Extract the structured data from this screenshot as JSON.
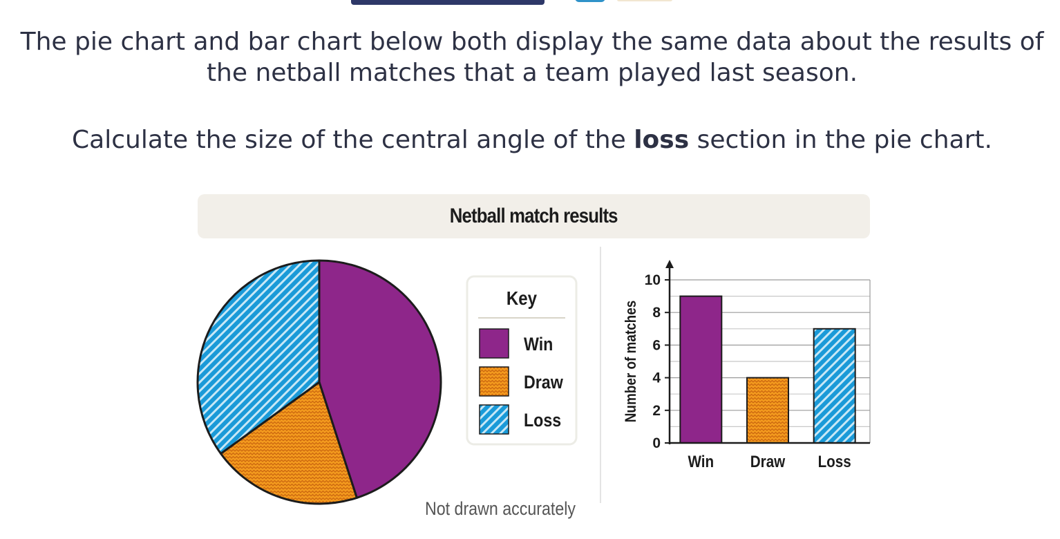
{
  "question": {
    "intro": "The pie chart and bar chart below both display the same data about the results of the netball matches that a team played last season.",
    "prompt_before": "Calculate the size of the central angle of the ",
    "prompt_bold": "loss",
    "prompt_after": " section in the pie chart."
  },
  "figure": {
    "title": "Netball match results",
    "note": "Not drawn accurately"
  },
  "legend": {
    "title": "Key",
    "items": [
      {
        "label": "Win",
        "color": "#8e268a",
        "pattern": "solid"
      },
      {
        "label": "Draw",
        "color": "#f39a1e",
        "pattern": "zigzag"
      },
      {
        "label": "Loss",
        "color": "#1a9ad8",
        "pattern": "diagonal-stripes"
      }
    ]
  },
  "chart_data": [
    {
      "type": "pie",
      "categories": [
        "Win",
        "Draw",
        "Loss"
      ],
      "values": [
        9,
        4,
        7
      ],
      "colors": [
        "#8e268a",
        "#f39a1e",
        "#1a9ad8"
      ]
    },
    {
      "type": "bar",
      "categories": [
        "Win",
        "Draw",
        "Loss"
      ],
      "values": [
        9,
        4,
        7
      ],
      "ylabel": "Number of matches",
      "ylim": [
        0,
        10
      ],
      "yticks": [
        0,
        2,
        4,
        6,
        8,
        10
      ],
      "minor_gridlines": true,
      "grid": true
    }
  ]
}
